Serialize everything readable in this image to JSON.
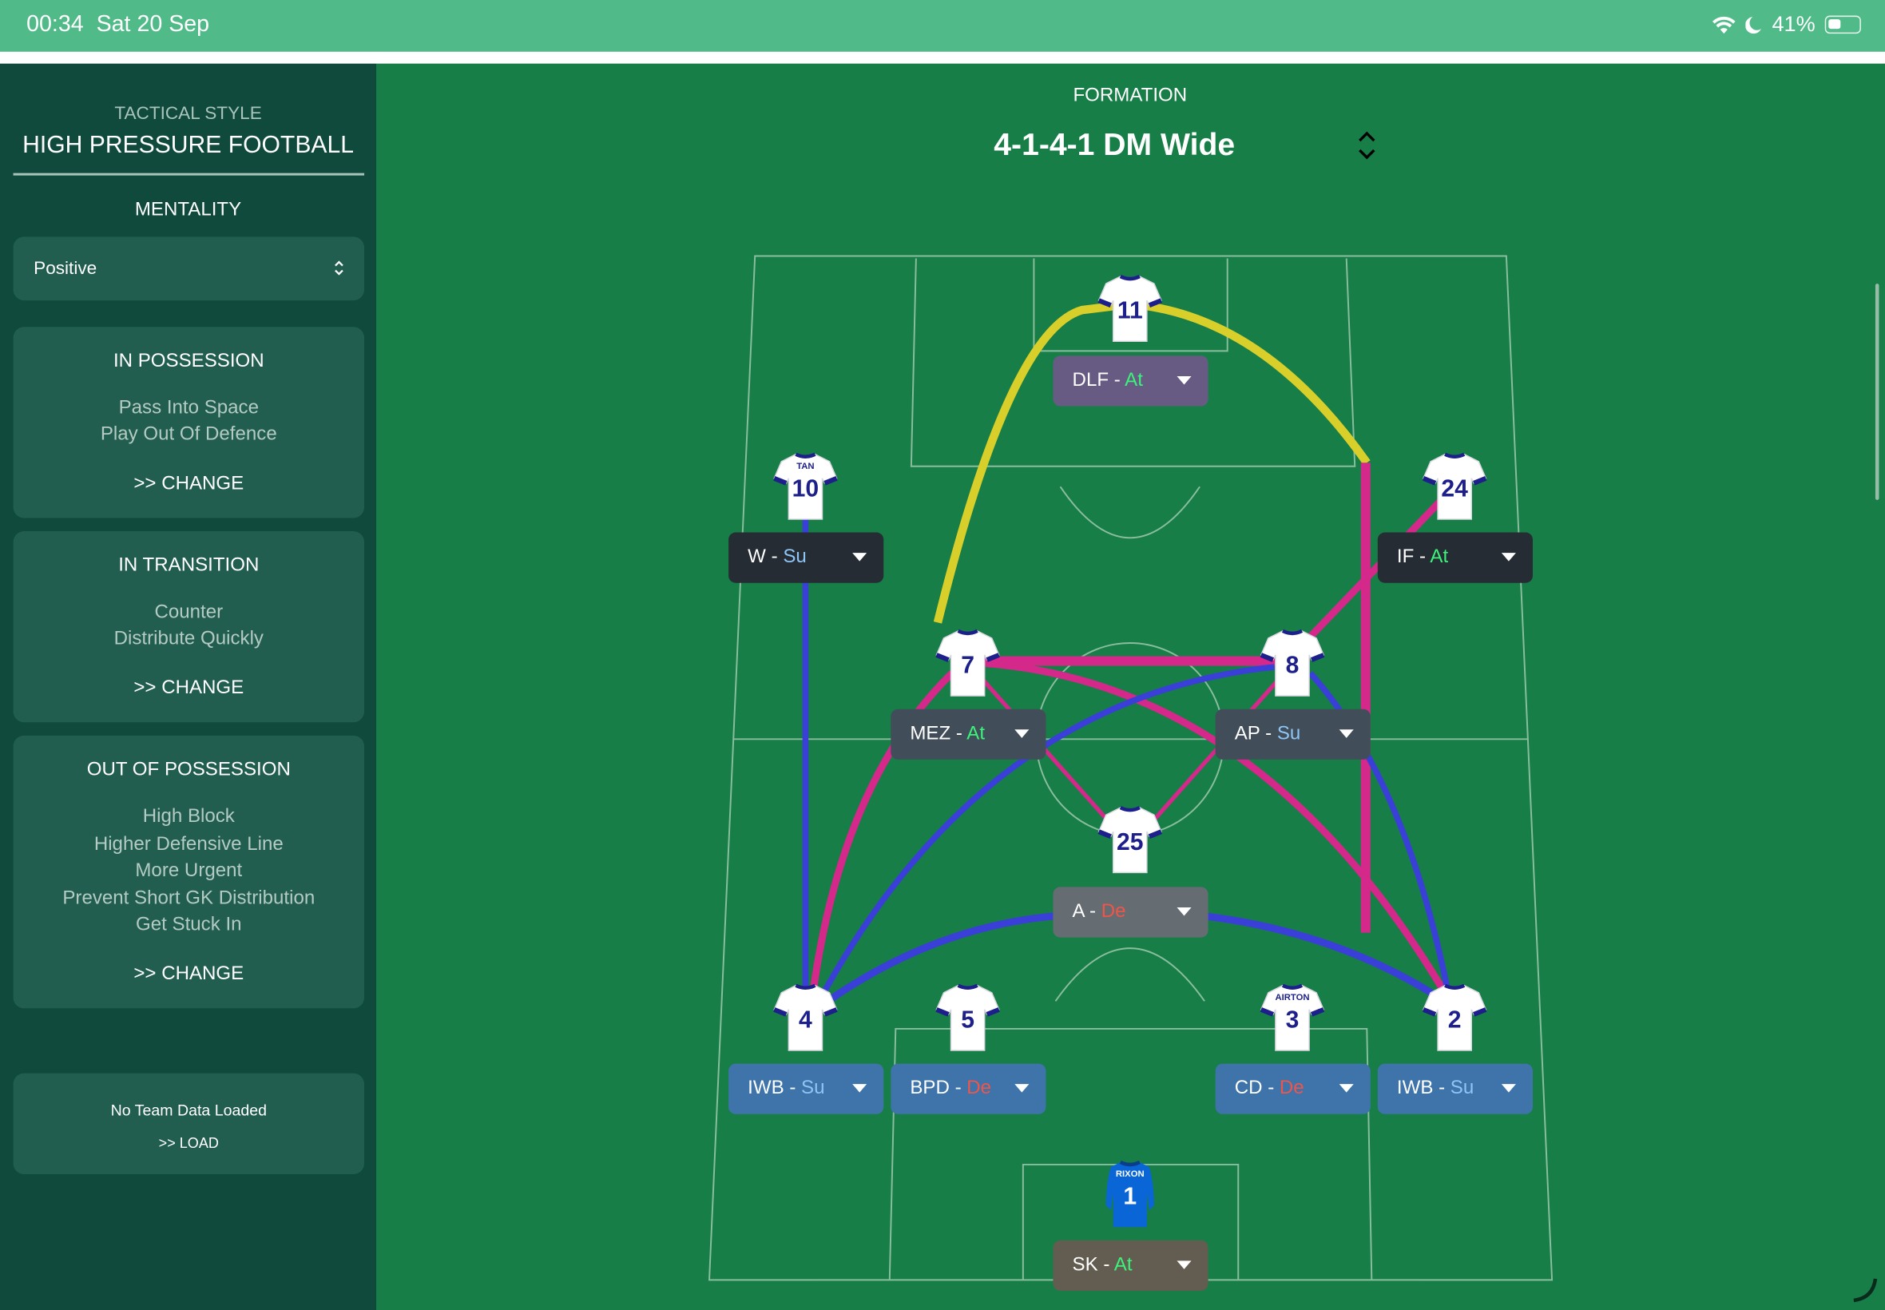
{
  "status_bar": {
    "time": "00:34",
    "date": "Sat 20 Sep",
    "battery": "41%",
    "icons": [
      "wifi-icon",
      "moon-icon",
      "battery-icon"
    ]
  },
  "sidebar": {
    "tactical_style_label": "TACTICAL STYLE",
    "tactical_style": "HIGH PRESSURE FOOTBALL",
    "mentality_label": "MENTALITY",
    "mentality_value": "Positive",
    "in_possession": {
      "title": "IN POSSESSION",
      "items": [
        "Pass Into Space",
        "Play Out Of Defence"
      ],
      "change": ">> CHANGE"
    },
    "in_transition": {
      "title": "IN TRANSITION",
      "items": [
        "Counter",
        "Distribute Quickly"
      ],
      "change": ">> CHANGE"
    },
    "out_of_possession": {
      "title": "OUT OF POSSESSION",
      "items": [
        "High Block",
        "Higher Defensive Line",
        "More Urgent",
        "Prevent Short GK Distribution",
        "Get Stuck In"
      ],
      "change": ">> CHANGE"
    },
    "team_data": {
      "status": "No Team Data Loaded",
      "load": ">> LOAD"
    }
  },
  "formation": {
    "label": "FORMATION",
    "value": "4-1-4-1 DM Wide"
  },
  "duty_colors": {
    "At": "#3df27a",
    "Su": "#8ec5f5",
    "De": "#f0554a"
  },
  "link_colors": {
    "yellow": "#d9cf2a",
    "pink": "#d4288a",
    "blue": "#3a3fd8"
  },
  "players": [
    {
      "number": "11",
      "name": "",
      "role": "DLF",
      "duty": "At",
      "box_color": "#675b84"
    },
    {
      "number": "10",
      "name": "TAN",
      "role": "W",
      "duty": "Su",
      "box_color": "#252c33"
    },
    {
      "number": "24",
      "name": "",
      "role": "IF",
      "duty": "At",
      "box_color": "#252c33"
    },
    {
      "number": "7",
      "name": "",
      "role": "MEZ",
      "duty": "At",
      "box_color": "#414e59"
    },
    {
      "number": "8",
      "name": "",
      "role": "AP",
      "duty": "Su",
      "box_color": "#414e59"
    },
    {
      "number": "25",
      "name": "",
      "role": "A",
      "duty": "De",
      "box_color": "#666d72"
    },
    {
      "number": "4",
      "name": "",
      "role": "IWB",
      "duty": "Su",
      "box_color": "#3e74aa"
    },
    {
      "number": "5",
      "name": "",
      "role": "BPD",
      "duty": "De",
      "box_color": "#3e74aa"
    },
    {
      "number": "3",
      "name": "AIRTON",
      "role": "CD",
      "duty": "De",
      "box_color": "#3e74aa"
    },
    {
      "number": "2",
      "name": "",
      "role": "IWB",
      "duty": "Su",
      "box_color": "#3e74aa"
    },
    {
      "number": "1",
      "name": "RIXON",
      "role": "SK",
      "duty": "At",
      "box_color": "#635c50",
      "goalkeeper": true
    }
  ]
}
